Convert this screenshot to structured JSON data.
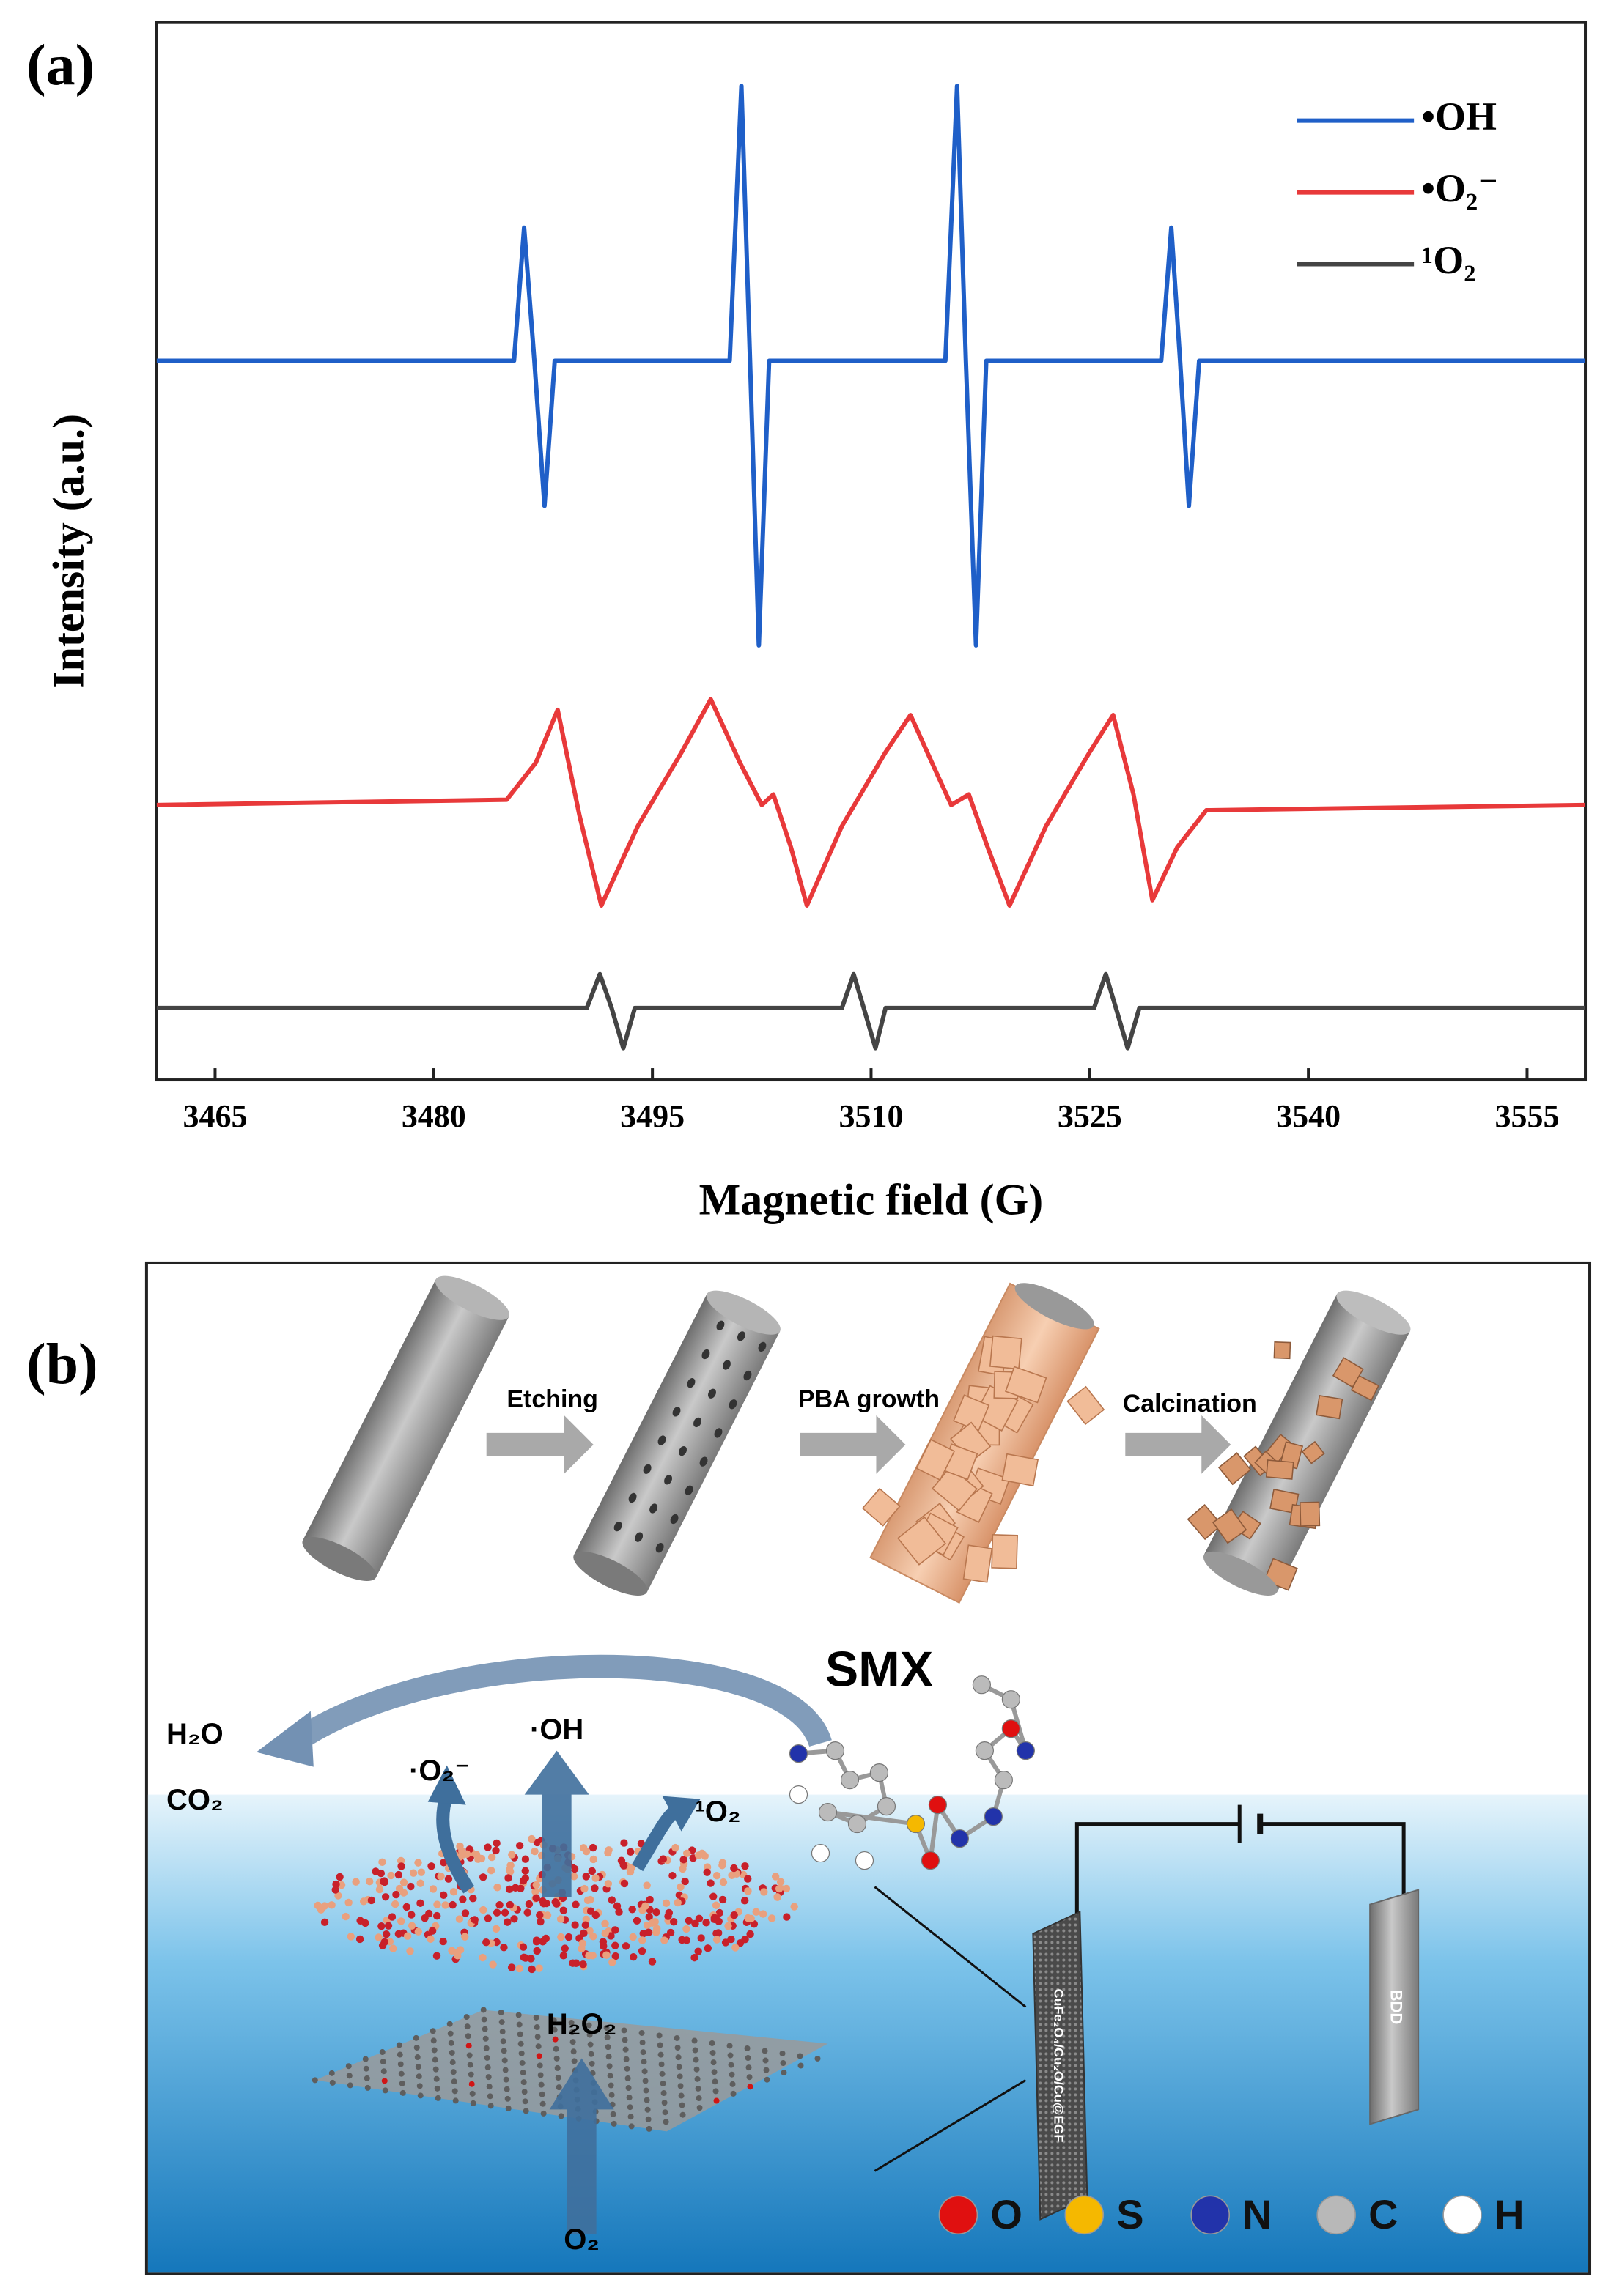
{
  "panel_labels": [
    "(a)",
    "(b)"
  ],
  "chart_data": {
    "type": "line",
    "xlabel": "Magnetic field (G)",
    "ylabel": "Intensity (a.u.)",
    "xlim": [
      3461,
      3559
    ],
    "xticks": [
      3465,
      3480,
      3495,
      3510,
      3525,
      3540,
      3555
    ],
    "ylim": [
      0,
      100
    ],
    "legend": "upper right",
    "series": [
      {
        "name": "•OH",
        "color": "#1f5fc8",
        "x": [
          3461,
          3485.5,
          3486.2,
          3486.9,
          3487.6,
          3488.3,
          3500.3,
          3501.1,
          3501.7,
          3502.3,
          3503,
          3515.1,
          3515.9,
          3516.5,
          3517.2,
          3517.9,
          3529.9,
          3530.6,
          3531.2,
          3531.8,
          3532.5,
          3559
        ],
        "values": [
          68,
          68,
          80.6,
          68,
          54.3,
          68,
          68,
          94,
          68,
          41.1,
          68,
          68,
          94,
          68,
          41.1,
          68,
          68,
          80.6,
          68,
          54.3,
          68,
          68
        ]
      },
      {
        "name": "•O₂⁻",
        "color": "#e8393a",
        "x": [
          3461,
          3485,
          3487,
          3488.5,
          3490,
          3491.5,
          3494,
          3497,
          3499,
          3501,
          3502.5,
          3503.3,
          3504.5,
          3505.6,
          3508,
          3511,
          3512.7,
          3514.5,
          3515.5,
          3516.7,
          3518,
          3519.5,
          3522,
          3525,
          3526.6,
          3528,
          3529.3,
          3531,
          3533,
          3559
        ],
        "values": [
          26,
          26.5,
          30,
          35,
          25,
          16.5,
          24,
          31,
          36,
          30,
          26,
          27,
          22,
          16.5,
          24,
          31,
          34.5,
          29,
          26,
          27,
          22,
          16.5,
          24,
          31,
          34.5,
          27,
          17,
          22,
          25.5,
          26
        ]
      },
      {
        "name": "¹O₂",
        "color": "#444444",
        "x": [
          3461,
          3490.5,
          3491.4,
          3492.2,
          3493,
          3493.8,
          3508,
          3508.8,
          3509.5,
          3510.3,
          3511,
          3525.3,
          3526.1,
          3526.8,
          3527.6,
          3528.4,
          3559
        ],
        "values": [
          6.8,
          6.8,
          10,
          6.8,
          3,
          6.8,
          6.8,
          10,
          6.8,
          3,
          6.8,
          6.8,
          10,
          6.8,
          3,
          6.8,
          6.8
        ]
      }
    ]
  },
  "diagram": {
    "steps": [
      "Etching",
      "PBA growth",
      "Calcination"
    ],
    "molecule": "SMX",
    "products": [
      "H₂O",
      "CO₂"
    ],
    "species": [
      "·O₂⁻",
      "·OH",
      "¹O₂",
      "H₂O₂",
      "O₂"
    ],
    "electrodes": [
      "CuFe₂O₄/Cu₂O/Cu@EGF",
      "BDD"
    ],
    "atoms": [
      {
        "symbol": "O",
        "color": "#e01010"
      },
      {
        "symbol": "S",
        "color": "#f5b800"
      },
      {
        "symbol": "N",
        "color": "#2233aa"
      },
      {
        "symbol": "C",
        "color": "#b8b8b8"
      },
      {
        "symbol": "H",
        "color": "#ffffff"
      }
    ]
  }
}
